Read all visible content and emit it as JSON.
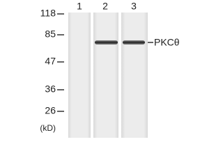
{
  "lanes": [
    "1",
    "2",
    "3"
  ],
  "markers": [
    "118",
    "85",
    "47",
    "36",
    "26"
  ],
  "unit": "(kD)",
  "band_label": "PKCθ"
}
